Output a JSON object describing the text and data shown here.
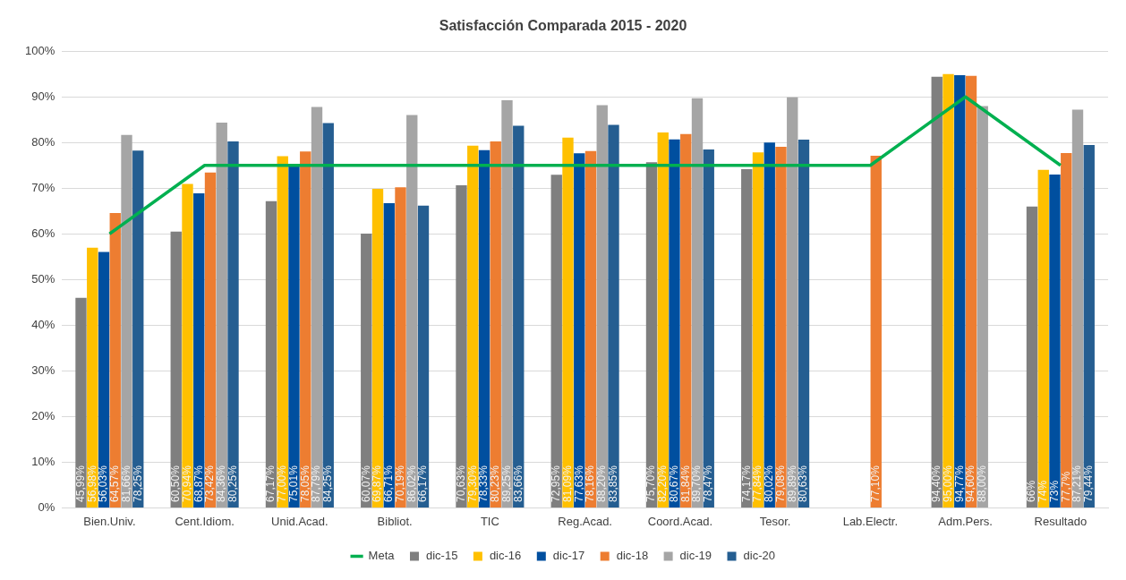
{
  "chart_data": {
    "type": "bar",
    "title": "Satisfacción Comparada 2015 - 2020",
    "categories": [
      "Bien.Univ.",
      "Cent.Idiom.",
      "Unid.Acad.",
      "Bibliot.",
      "TIC",
      "Reg.Acad.",
      "Coord.Acad.",
      "Tesor.",
      "Lab.Electr.",
      "Adm.Pers.",
      "Resultado"
    ],
    "series": [
      {
        "name": "dic-15",
        "color": "#7f7f7f",
        "values": [
          45.99,
          60.5,
          67.17,
          60.07,
          70.63,
          72.95,
          75.7,
          74.17,
          null,
          94.4,
          66
        ],
        "value_labels": [
          "45,99%",
          "60,50%",
          "67,17%",
          "60,07%",
          "70,63%",
          "72,95%",
          "75,70%",
          "74,17%",
          null,
          "94,40%",
          "66%"
        ]
      },
      {
        "name": "dic-16",
        "color": "#ffc000",
        "values": [
          56.98,
          70.94,
          77.0,
          69.87,
          79.3,
          81.09,
          82.2,
          77.84,
          null,
          95.0,
          74
        ],
        "value_labels": [
          "56,98%",
          "70,94%",
          "77,00%",
          "69,87%",
          "79,30%",
          "81,09%",
          "82,20%",
          "77,84%",
          null,
          "95,00%",
          "74%"
        ]
      },
      {
        "name": "dic-17",
        "color": "#004f9f",
        "values": [
          56.03,
          68.87,
          75.01,
          66.71,
          78.33,
          77.63,
          80.67,
          80.02,
          null,
          94.77,
          73
        ],
        "value_labels": [
          "56,03%",
          "68,87%",
          "75,01%",
          "66,71%",
          "78,33%",
          "77,63%",
          "80,67%",
          "80,02%",
          null,
          "94,77%",
          "73%"
        ]
      },
      {
        "name": "dic-18",
        "color": "#ed7d31",
        "values": [
          64.57,
          73.42,
          78.05,
          70.19,
          80.23,
          78.16,
          81.84,
          79.08,
          77.1,
          94.6,
          77.7
        ],
        "value_labels": [
          "64,57%",
          "73,42%",
          "78,05%",
          "70,19%",
          "80,23%",
          "78,16%",
          "81,84%",
          "79,08%",
          "77,10%",
          "94,60%",
          "77,7%"
        ]
      },
      {
        "name": "dic-19",
        "color": "#a5a5a5",
        "values": [
          81.66,
          84.36,
          87.79,
          86.02,
          89.25,
          88.2,
          89.7,
          89.89,
          null,
          88.0,
          87.21
        ],
        "value_labels": [
          "81,66%",
          "84,36%",
          "87,79%",
          "86,02%",
          "89,25%",
          "88,20%",
          "89,70%",
          "89,89%",
          null,
          "88,00%",
          "87,21%"
        ]
      },
      {
        "name": "dic-20",
        "color": "#255e91",
        "values": [
          78.25,
          80.25,
          84.25,
          66.17,
          83.66,
          83.85,
          78.47,
          80.63,
          null,
          null,
          79.44
        ],
        "value_labels": [
          "78,25%",
          "80,25%",
          "84,25%",
          "66,17%",
          "83,66%",
          "83,85%",
          "78,47%",
          "80,63%",
          null,
          null,
          "79,44%"
        ]
      },
      {
        "name": "Meta",
        "type": "line",
        "color": "#00b050",
        "marker": "none",
        "values": [
          60,
          75,
          75,
          75,
          75,
          75,
          75,
          75,
          75,
          90,
          75
        ]
      }
    ],
    "ylim": [
      0,
      100
    ],
    "yticks": [
      {
        "value": 0,
        "label": "0%"
      },
      {
        "value": 10,
        "label": "10%"
      },
      {
        "value": 20,
        "label": "20%"
      },
      {
        "value": 30,
        "label": "30%"
      },
      {
        "value": 40,
        "label": "40%"
      },
      {
        "value": 50,
        "label": "50%"
      },
      {
        "value": 60,
        "label": "60%"
      },
      {
        "value": 70,
        "label": "70%"
      },
      {
        "value": 80,
        "label": "80%"
      },
      {
        "value": 90,
        "label": "90%"
      },
      {
        "value": 100,
        "label": "100%"
      }
    ],
    "grid": "y",
    "legend": "bottom"
  }
}
